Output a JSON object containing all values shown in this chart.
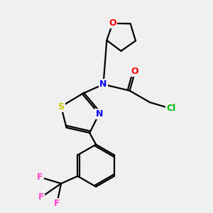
{
  "background_color": "#f0f0f0",
  "atom_colors": {
    "O": "#ff0000",
    "N": "#0000ff",
    "S": "#cccc00",
    "Cl": "#00bb00",
    "F": "#ff44cc",
    "C": "#000000"
  },
  "bond_color": "#000000",
  "bond_width": 1.6,
  "figsize": [
    3.0,
    3.0
  ],
  "dpi": 100
}
